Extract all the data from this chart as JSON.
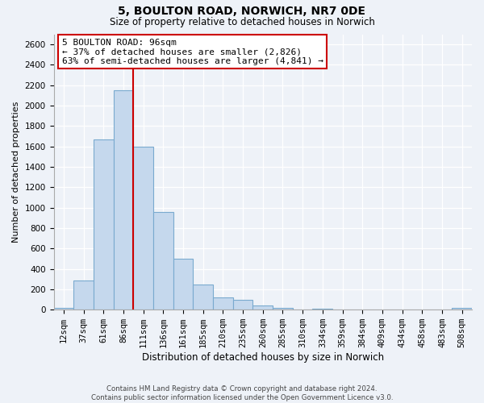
{
  "title": "5, BOULTON ROAD, NORWICH, NR7 0DE",
  "subtitle": "Size of property relative to detached houses in Norwich",
  "xlabel": "Distribution of detached houses by size in Norwich",
  "ylabel": "Number of detached properties",
  "bin_labels": [
    "12sqm",
    "37sqm",
    "61sqm",
    "86sqm",
    "111sqm",
    "136sqm",
    "161sqm",
    "185sqm",
    "210sqm",
    "235sqm",
    "260sqm",
    "285sqm",
    "310sqm",
    "334sqm",
    "359sqm",
    "384sqm",
    "409sqm",
    "434sqm",
    "458sqm",
    "483sqm",
    "508sqm"
  ],
  "bar_heights": [
    20,
    290,
    1670,
    2150,
    1600,
    960,
    500,
    250,
    120,
    95,
    40,
    15,
    5,
    10,
    5,
    5,
    3,
    3,
    3,
    3,
    15
  ],
  "bar_color": "#c5d8ed",
  "bar_edge_color": "#7aaacf",
  "vline_color": "#cc0000",
  "annotation_box_title": "5 BOULTON ROAD: 96sqm",
  "annotation_line1": "← 37% of detached houses are smaller (2,826)",
  "annotation_line2": "63% of semi-detached houses are larger (4,841) →",
  "annotation_box_color": "#ffffff",
  "annotation_box_edge_color": "#cc0000",
  "ylim": [
    0,
    2700
  ],
  "yticks": [
    0,
    200,
    400,
    600,
    800,
    1000,
    1200,
    1400,
    1600,
    1800,
    2000,
    2200,
    2400,
    2600
  ],
  "footer_line1": "Contains HM Land Registry data © Crown copyright and database right 2024.",
  "footer_line2": "Contains public sector information licensed under the Open Government Licence v3.0.",
  "background_color": "#eef2f8",
  "grid_color": "#ffffff",
  "title_fontsize": 10,
  "subtitle_fontsize": 8.5,
  "ylabel_fontsize": 8,
  "xlabel_fontsize": 8.5,
  "tick_fontsize": 7.5,
  "annot_fontsize": 8
}
